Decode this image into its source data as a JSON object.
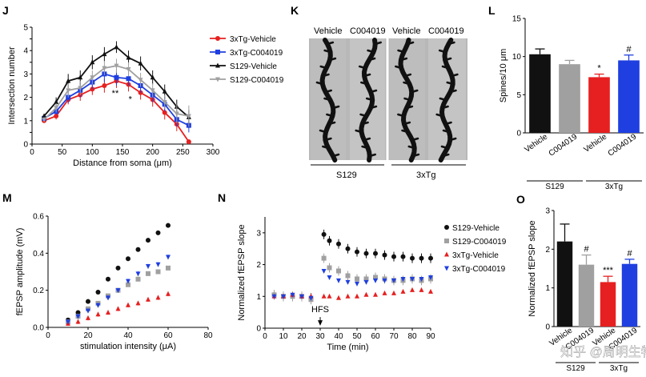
{
  "panels": {
    "J": "J",
    "K": "K",
    "L": "L",
    "M": "M",
    "N": "N",
    "O": "O"
  },
  "colors": {
    "red": "#e62020",
    "blue": "#1f3fe0",
    "black": "#111111",
    "gray": "#a0a0a0"
  },
  "watermark": "知乎 @周明生物",
  "chart_data": [
    {
      "id": "J",
      "type": "line",
      "xlabel": "Distance from soma (μm)",
      "ylabel": "Intersection number",
      "xlim": [
        0,
        300
      ],
      "ylim": [
        0,
        5
      ],
      "xticks": [
        0,
        50,
        100,
        150,
        200,
        250,
        300
      ],
      "yticks": [
        0,
        0.5,
        1,
        1.5,
        2,
        2.5,
        3,
        3.5,
        4,
        4.5,
        5
      ],
      "ytick_labels": [
        "0",
        "",
        "1",
        "",
        "2",
        "",
        "3",
        "",
        "4",
        "",
        "5"
      ],
      "x": [
        20,
        40,
        60,
        80,
        100,
        120,
        140,
        160,
        180,
        200,
        220,
        240,
        260
      ],
      "series": [
        {
          "name": "3xTg-Vehicle",
          "color": "#e62020",
          "marker": "circle",
          "values": [
            1.0,
            1.2,
            1.9,
            2.1,
            2.35,
            2.5,
            2.7,
            2.55,
            2.2,
            1.9,
            1.35,
            0.85,
            0.1
          ],
          "err": [
            0.1,
            0.15,
            0.2,
            0.25,
            0.25,
            0.3,
            0.3,
            0.3,
            0.3,
            0.3,
            0.3,
            0.3,
            0.1
          ]
        },
        {
          "name": "3xTg-C004019",
          "color": "#1f3fe0",
          "marker": "square",
          "values": [
            1.1,
            1.4,
            2.0,
            2.3,
            2.65,
            3.0,
            2.85,
            2.8,
            2.5,
            2.1,
            1.7,
            1.05,
            0.8
          ],
          "err": [
            0.1,
            0.15,
            0.25,
            0.3,
            0.3,
            0.35,
            0.35,
            0.3,
            0.3,
            0.3,
            0.3,
            0.3,
            0.3
          ]
        },
        {
          "name": "S129-Vehicle",
          "color": "#111111",
          "marker": "triangle-up",
          "values": [
            1.2,
            1.8,
            2.7,
            2.85,
            3.5,
            3.85,
            4.15,
            3.7,
            3.45,
            2.85,
            2.25,
            1.6,
            1.15
          ],
          "err": [
            0.1,
            0.2,
            0.3,
            0.3,
            0.3,
            0.3,
            0.25,
            0.3,
            0.3,
            0.3,
            0.3,
            0.3,
            0.3
          ]
        },
        {
          "name": "S129-C004019",
          "color": "#a0a0a0",
          "marker": "triangle-down",
          "values": [
            1.05,
            1.55,
            2.3,
            2.4,
            2.85,
            3.25,
            3.35,
            3.2,
            2.75,
            2.3,
            1.8,
            1.3,
            1.2
          ],
          "err": [
            0.1,
            0.2,
            0.3,
            0.3,
            0.3,
            0.3,
            0.3,
            0.3,
            0.3,
            0.3,
            0.3,
            0.4,
            0.45
          ]
        }
      ],
      "annotations": [
        {
          "text": "**",
          "x": 138,
          "y": 2.05
        },
        {
          "text": "*",
          "x": 163,
          "y": 1.8
        }
      ]
    },
    {
      "id": "L",
      "type": "bar",
      "ylabel": "Spines/10 μm",
      "ylim": [
        0,
        15
      ],
      "yticks": [
        0,
        5,
        10,
        15
      ],
      "categories": [
        "Vehicle",
        "C004019",
        "Vehicle",
        "C004019"
      ],
      "groups": [
        "S129",
        "3xTg"
      ],
      "values": [
        10.3,
        9.0,
        7.3,
        9.5
      ],
      "err": [
        0.7,
        0.5,
        0.4,
        0.7
      ],
      "colors": [
        "#111111",
        "#a0a0a0",
        "#e62020",
        "#1f3fe0"
      ],
      "annotations": [
        "",
        "",
        "*",
        "#"
      ]
    },
    {
      "id": "M",
      "type": "scatter",
      "xlabel": "stimulation intensity (μA)",
      "ylabel": "fEPSP amplitude (mV)",
      "xlim": [
        0,
        80
      ],
      "ylim": [
        0,
        0.6
      ],
      "xticks": [
        0,
        20,
        40,
        60,
        80
      ],
      "yticks": [
        0,
        0.2,
        0.4,
        0.6
      ],
      "ytick_labels": [
        "0.0",
        "0.2",
        "0.4",
        "0.6"
      ],
      "x": [
        10,
        15,
        20,
        25,
        30,
        35,
        40,
        45,
        50,
        55,
        60
      ],
      "series": [
        {
          "name": "S129-Vehicle",
          "color": "#111111",
          "marker": "circle",
          "values": [
            0.04,
            0.08,
            0.14,
            0.19,
            0.26,
            0.32,
            0.37,
            0.42,
            0.47,
            0.51,
            0.55
          ]
        },
        {
          "name": "S129-C004019",
          "color": "#a0a0a0",
          "marker": "square",
          "values": [
            0.03,
            0.06,
            0.1,
            0.13,
            0.17,
            0.2,
            0.23,
            0.26,
            0.29,
            0.3,
            0.32
          ]
        },
        {
          "name": "3xTg-Vehicle",
          "color": "#e62020",
          "marker": "triangle-up",
          "values": [
            0.02,
            0.03,
            0.05,
            0.07,
            0.08,
            0.1,
            0.12,
            0.13,
            0.15,
            0.16,
            0.18
          ]
        },
        {
          "name": "3xTg-C004019",
          "color": "#1f3fe0",
          "marker": "triangle-down",
          "values": [
            0.03,
            0.06,
            0.09,
            0.12,
            0.16,
            0.2,
            0.25,
            0.29,
            0.33,
            0.34,
            0.38
          ]
        }
      ]
    },
    {
      "id": "N",
      "type": "scatter",
      "xlabel": "Time (min)",
      "ylabel": "Normalized fEPSP slope",
      "xlim": [
        0,
        90
      ],
      "ylim": [
        0,
        3.5
      ],
      "xticks": [
        0,
        10,
        20,
        30,
        40,
        50,
        60,
        70,
        80,
        90
      ],
      "yticks": [
        0,
        1,
        2,
        3
      ],
      "annotation": "HFS",
      "annotation_x": 30,
      "series": [
        {
          "name": "S129-Vehicle",
          "color": "#111111",
          "marker": "circle",
          "x": [
            5,
            10,
            15,
            20,
            25,
            32,
            35,
            40,
            45,
            50,
            55,
            60,
            65,
            70,
            75,
            80,
            85,
            90
          ],
          "values": [
            1.05,
            1.0,
            1.0,
            1.0,
            0.95,
            2.95,
            2.75,
            2.65,
            2.5,
            2.4,
            2.35,
            2.35,
            2.3,
            2.25,
            2.25,
            2.2,
            2.2,
            2.2
          ]
        },
        {
          "name": "S129-C004019",
          "color": "#a0a0a0",
          "marker": "square",
          "x": [
            5,
            10,
            15,
            20,
            25,
            32,
            35,
            40,
            45,
            50,
            55,
            60,
            65,
            70,
            75,
            80,
            85,
            90
          ],
          "values": [
            1.05,
            1.0,
            1.0,
            1.0,
            0.9,
            2.2,
            1.9,
            1.8,
            1.65,
            1.55,
            1.55,
            1.6,
            1.55,
            1.5,
            1.5,
            1.55,
            1.5,
            1.55
          ]
        },
        {
          "name": "3xTg-Vehicle",
          "color": "#e62020",
          "marker": "triangle-up",
          "x": [
            5,
            10,
            15,
            20,
            25,
            32,
            35,
            40,
            45,
            50,
            55,
            60,
            65,
            70,
            75,
            80,
            85,
            90
          ],
          "values": [
            1.0,
            1.0,
            1.05,
            1.0,
            1.0,
            1.0,
            1.0,
            0.95,
            1.0,
            1.0,
            1.05,
            1.05,
            1.1,
            1.1,
            1.15,
            1.2,
            1.2,
            1.15
          ]
        },
        {
          "name": "3xTg-C004019",
          "color": "#1f3fe0",
          "marker": "triangle-down",
          "x": [
            5,
            10,
            15,
            20,
            25,
            32,
            35,
            40,
            45,
            50,
            55,
            60,
            65,
            70,
            75,
            80,
            85,
            90
          ],
          "values": [
            1.0,
            1.0,
            1.05,
            1.0,
            0.95,
            1.8,
            1.6,
            1.5,
            1.45,
            1.4,
            1.45,
            1.5,
            1.5,
            1.5,
            1.55,
            1.55,
            1.55,
            1.6
          ]
        }
      ]
    },
    {
      "id": "O",
      "type": "bar",
      "ylabel": "Normalized fEPSP slope",
      "ylim": [
        0,
        3
      ],
      "yticks": [
        0,
        1,
        2,
        3
      ],
      "categories": [
        "Vehicle",
        "C004019",
        "Vehicle",
        "C004019"
      ],
      "groups": [
        "S129",
        "3xTg"
      ],
      "values": [
        2.2,
        1.6,
        1.15,
        1.62
      ],
      "err": [
        0.45,
        0.25,
        0.15,
        0.12
      ],
      "colors": [
        "#111111",
        "#a0a0a0",
        "#e62020",
        "#1f3fe0"
      ],
      "annotations": [
        "",
        "#",
        "***",
        "#"
      ]
    }
  ],
  "panel_k": {
    "columns": [
      "Vehicle",
      "C004019",
      "Vehicle",
      "C004019"
    ],
    "groups": [
      "S129",
      "3xTg"
    ]
  }
}
